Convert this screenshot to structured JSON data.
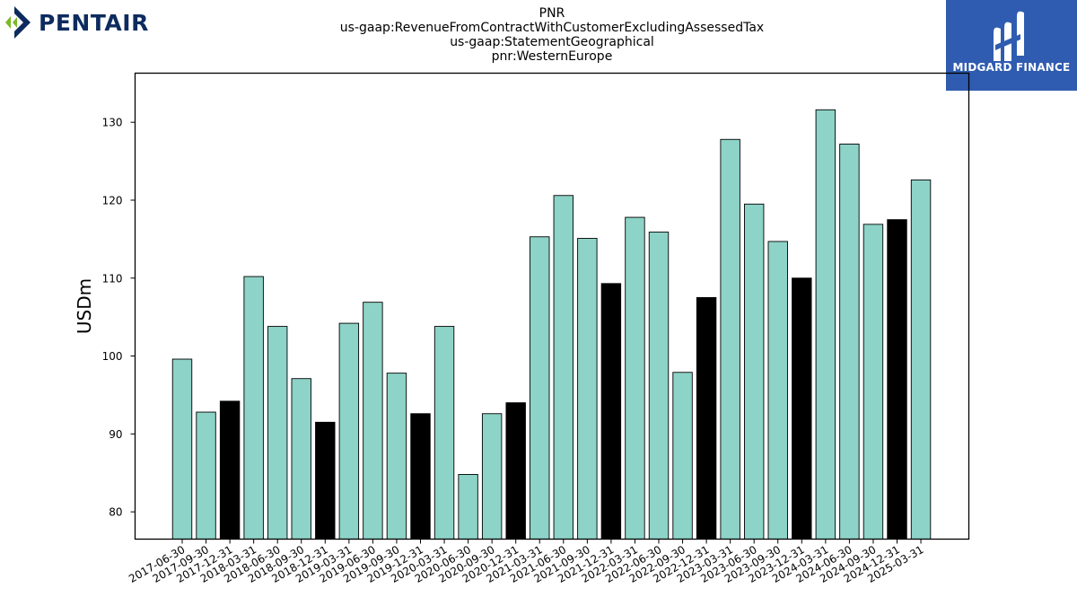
{
  "header": {
    "title_lines": [
      "PNR",
      "us-gaap:RevenueFromContractWithCustomerExcludingAssessedTax",
      "us-gaap:StatementGeographical",
      "pnr:WesternEurope"
    ]
  },
  "logos": {
    "left_text": "PENTAIR",
    "right_text": "MIDGARD FINANCE"
  },
  "colors": {
    "quarter_bar": "#8dd3c7",
    "year_end_bar": "#000000",
    "bar_edge": "#000000",
    "pentair_navy": "#0d2b5e",
    "pentair_green": "#7ab929",
    "midgard_blue": "#2f5cb0"
  },
  "chart_data": {
    "type": "bar",
    "title": "",
    "xlabel": "",
    "ylabel": "USDm",
    "ylim": [
      76.5,
      136.3
    ],
    "yticks": [
      80,
      90,
      100,
      110,
      120,
      130
    ],
    "grid": false,
    "categories": [
      "2017-06-30",
      "2017-09-30",
      "2017-12-31",
      "2018-03-31",
      "2018-06-30",
      "2018-09-30",
      "2018-12-31",
      "2019-03-31",
      "2019-06-30",
      "2019-09-30",
      "2019-12-31",
      "2020-03-31",
      "2020-06-30",
      "2020-09-30",
      "2020-12-31",
      "2021-03-31",
      "2021-06-30",
      "2021-09-30",
      "2021-12-31",
      "2022-03-31",
      "2022-06-30",
      "2022-09-30",
      "2022-12-31",
      "2023-03-31",
      "2023-06-30",
      "2023-09-30",
      "2023-12-31",
      "2024-03-31",
      "2024-06-30",
      "2024-09-30",
      "2024-12-31",
      "2025-03-31"
    ],
    "values": [
      99.6,
      92.8,
      94.2,
      110.2,
      103.8,
      97.1,
      91.5,
      104.2,
      106.9,
      97.8,
      92.6,
      103.8,
      84.8,
      92.6,
      94.0,
      115.3,
      120.6,
      115.1,
      109.3,
      117.8,
      115.9,
      97.9,
      107.5,
      127.8,
      119.5,
      114.7,
      110.0,
      131.6,
      127.2,
      116.9,
      117.5,
      122.6
    ],
    "year_end_flags": [
      false,
      false,
      true,
      false,
      false,
      false,
      true,
      false,
      false,
      false,
      true,
      false,
      false,
      false,
      true,
      false,
      false,
      false,
      true,
      false,
      false,
      false,
      true,
      false,
      false,
      false,
      true,
      false,
      false,
      false,
      true,
      false
    ]
  }
}
